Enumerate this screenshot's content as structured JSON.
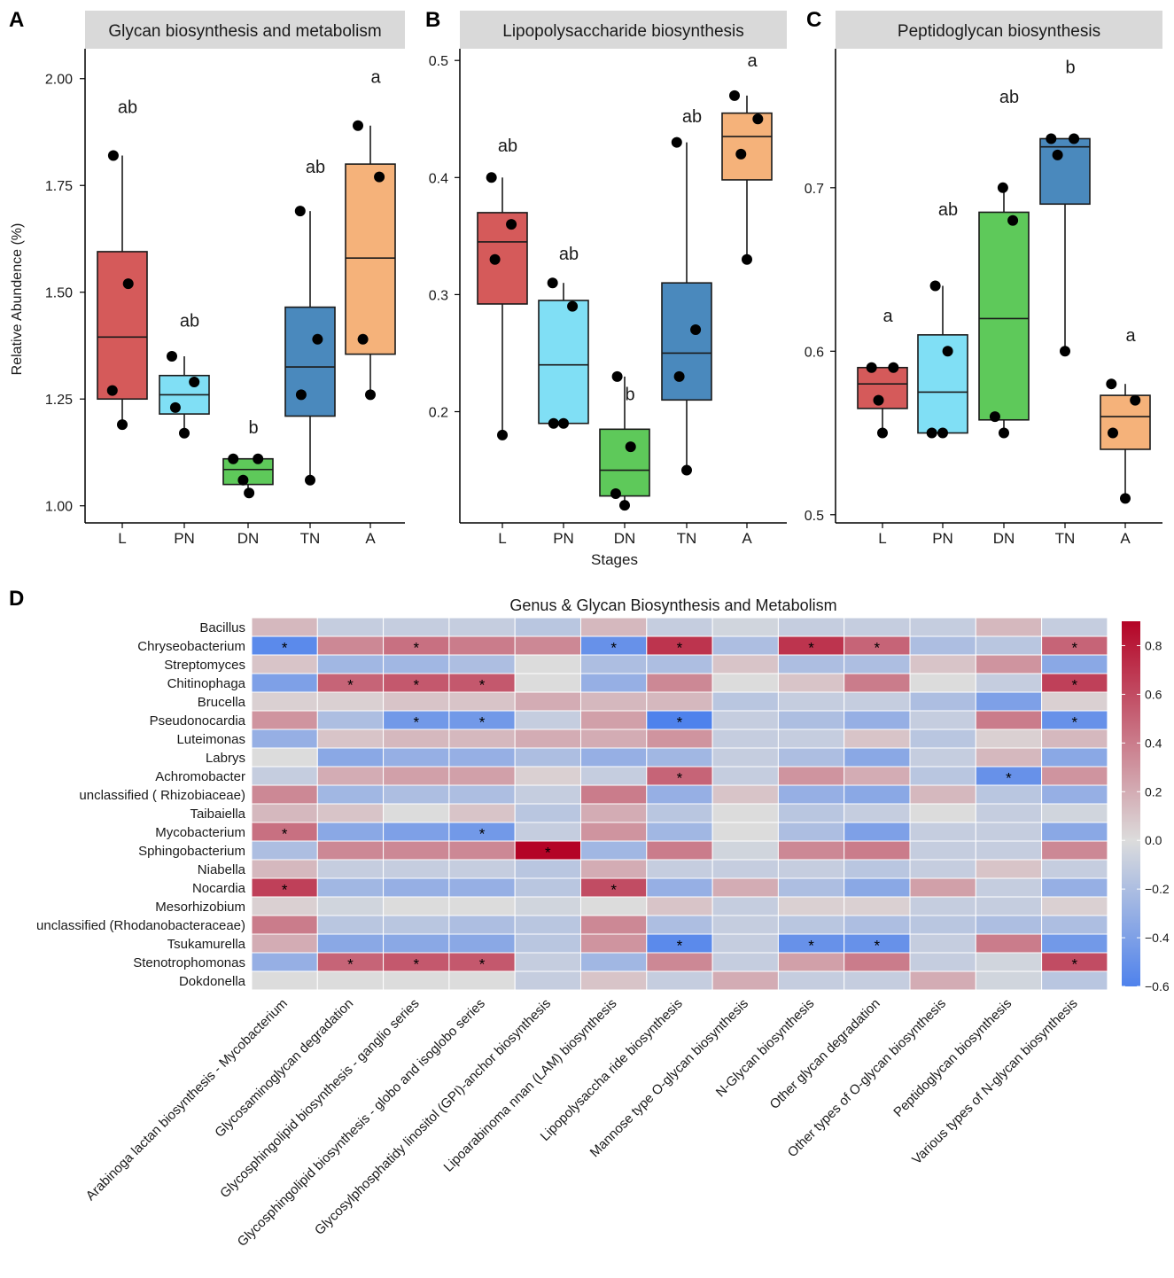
{
  "figure": {
    "panel_letters": [
      "A",
      "B",
      "C",
      "D"
    ],
    "stages_label": "Stages",
    "stage_colors": [
      "#d55a5a",
      "#80dff5",
      "#5ec95a",
      "#4a89bd",
      "#f5b27a"
    ]
  },
  "chart_data": [
    {
      "type": "box",
      "panel": "A",
      "title": "Glycan biosynthesis and metabolism",
      "ylabel": "Relative Abundence (%)",
      "xlabel": "",
      "categories": [
        "L",
        "PN",
        "DN",
        "TN",
        "A"
      ],
      "ylim": [
        0.96,
        2.07
      ],
      "yticks": [
        1.0,
        1.25,
        1.5,
        1.75,
        2.0
      ],
      "ytick_labels": [
        "1.00",
        "1.25",
        "1.50",
        "1.75",
        "2.00"
      ],
      "boxes": [
        {
          "group": "L",
          "whisker_low": 1.19,
          "q1": 1.25,
          "median": 1.395,
          "q3": 1.595,
          "whisker_high": 1.82
        },
        {
          "group": "PN",
          "whisker_low": 1.17,
          "q1": 1.215,
          "median": 1.26,
          "q3": 1.305,
          "whisker_high": 1.35
        },
        {
          "group": "DN",
          "whisker_low": 1.03,
          "q1": 1.05,
          "median": 1.085,
          "q3": 1.11,
          "whisker_high": 1.11
        },
        {
          "group": "TN",
          "whisker_low": 1.06,
          "q1": 1.21,
          "median": 1.325,
          "q3": 1.465,
          "whisker_high": 1.69
        },
        {
          "group": "A",
          "whisker_low": 1.26,
          "q1": 1.355,
          "median": 1.58,
          "q3": 1.8,
          "whisker_high": 1.89
        }
      ],
      "points": [
        [
          [
            -0.18,
            1.82
          ],
          [
            0.12,
            1.52
          ],
          [
            -0.2,
            1.27
          ],
          [
            0.0,
            1.19
          ]
        ],
        [
          [
            -0.25,
            1.35
          ],
          [
            0.2,
            1.29
          ],
          [
            -0.18,
            1.23
          ],
          [
            0.0,
            1.17
          ]
        ],
        [
          [
            -0.3,
            1.11
          ],
          [
            0.2,
            1.11
          ],
          [
            -0.1,
            1.06
          ],
          [
            0.02,
            1.03
          ]
        ],
        [
          [
            -0.2,
            1.69
          ],
          [
            0.15,
            1.39
          ],
          [
            -0.18,
            1.26
          ],
          [
            0.0,
            1.06
          ]
        ],
        [
          [
            -0.25,
            1.89
          ],
          [
            0.18,
            1.77
          ],
          [
            -0.15,
            1.39
          ],
          [
            0.0,
            1.26
          ]
        ]
      ],
      "letters": [
        "ab",
        "ab",
        "b",
        "ab",
        "a"
      ],
      "letter_values": [
        1.92,
        1.42,
        1.17,
        1.78,
        1.99
      ]
    },
    {
      "type": "box",
      "panel": "B",
      "title": "Lipopolysaccharide biosynthesis",
      "ylabel": "",
      "xlabel": "Stages",
      "categories": [
        "L",
        "PN",
        "DN",
        "TN",
        "A"
      ],
      "ylim": [
        0.105,
        0.51
      ],
      "yticks": [
        0.2,
        0.3,
        0.4,
        0.5
      ],
      "ytick_labels": [
        "0.2",
        "0.3",
        "0.4",
        "0.5"
      ],
      "boxes": [
        {
          "group": "L",
          "whisker_low": 0.18,
          "q1": 0.292,
          "median": 0.345,
          "q3": 0.37,
          "whisker_high": 0.4
        },
        {
          "group": "PN",
          "whisker_low": 0.19,
          "q1": 0.19,
          "median": 0.24,
          "q3": 0.295,
          "whisker_high": 0.31
        },
        {
          "group": "DN",
          "whisker_low": 0.12,
          "q1": 0.128,
          "median": 0.15,
          "q3": 0.185,
          "whisker_high": 0.23
        },
        {
          "group": "TN",
          "whisker_low": 0.15,
          "q1": 0.21,
          "median": 0.25,
          "q3": 0.31,
          "whisker_high": 0.43
        },
        {
          "group": "A",
          "whisker_low": 0.33,
          "q1": 0.398,
          "median": 0.435,
          "q3": 0.455,
          "whisker_high": 0.47
        }
      ],
      "points": [
        [
          [
            -0.22,
            0.4
          ],
          [
            0.18,
            0.36
          ],
          [
            -0.15,
            0.33
          ],
          [
            0.0,
            0.18
          ]
        ],
        [
          [
            -0.22,
            0.31
          ],
          [
            0.18,
            0.29
          ],
          [
            -0.2,
            0.19
          ],
          [
            0.0,
            0.19
          ]
        ],
        [
          [
            -0.15,
            0.23
          ],
          [
            0.12,
            0.17
          ],
          [
            -0.18,
            0.13
          ],
          [
            0.0,
            0.12
          ]
        ],
        [
          [
            -0.2,
            0.43
          ],
          [
            0.18,
            0.27
          ],
          [
            -0.15,
            0.23
          ],
          [
            0.0,
            0.15
          ]
        ],
        [
          [
            -0.25,
            0.47
          ],
          [
            0.22,
            0.45
          ],
          [
            -0.12,
            0.42
          ],
          [
            0.0,
            0.33
          ]
        ]
      ],
      "letters": [
        "ab",
        "ab",
        "b",
        "ab",
        "a"
      ],
      "letter_values": [
        0.422,
        0.33,
        0.21,
        0.447,
        0.495
      ]
    },
    {
      "type": "box",
      "panel": "C",
      "title": "Peptidoglycan biosynthesis",
      "ylabel": "",
      "xlabel": "",
      "categories": [
        "L",
        "PN",
        "DN",
        "TN",
        "A"
      ],
      "ylim": [
        0.495,
        0.785
      ],
      "yticks": [
        0.5,
        0.6,
        0.7
      ],
      "ytick_labels": [
        "0.5",
        "0.6",
        "0.7"
      ],
      "boxes": [
        {
          "group": "L",
          "whisker_low": 0.55,
          "q1": 0.565,
          "median": 0.58,
          "q3": 0.59,
          "whisker_high": 0.59
        },
        {
          "group": "PN",
          "whisker_low": 0.55,
          "q1": 0.55,
          "median": 0.575,
          "q3": 0.61,
          "whisker_high": 0.64
        },
        {
          "group": "DN",
          "whisker_low": 0.55,
          "q1": 0.558,
          "median": 0.62,
          "q3": 0.685,
          "whisker_high": 0.7
        },
        {
          "group": "TN",
          "whisker_low": 0.6,
          "q1": 0.69,
          "median": 0.725,
          "q3": 0.73,
          "whisker_high": 0.73
        },
        {
          "group": "A",
          "whisker_low": 0.51,
          "q1": 0.54,
          "median": 0.56,
          "q3": 0.573,
          "whisker_high": 0.58
        }
      ],
      "points": [
        [
          [
            -0.22,
            0.59
          ],
          [
            0.22,
            0.59
          ],
          [
            -0.08,
            0.57
          ],
          [
            0.0,
            0.55
          ]
        ],
        [
          [
            -0.15,
            0.64
          ],
          [
            0.1,
            0.6
          ],
          [
            -0.22,
            0.55
          ],
          [
            0.0,
            0.55
          ]
        ],
        [
          [
            -0.02,
            0.7
          ],
          [
            0.18,
            0.68
          ],
          [
            -0.18,
            0.56
          ],
          [
            0.0,
            0.55
          ]
        ],
        [
          [
            -0.28,
            0.73
          ],
          [
            0.18,
            0.73
          ],
          [
            -0.15,
            0.72
          ],
          [
            0.0,
            0.6
          ]
        ],
        [
          [
            -0.28,
            0.58
          ],
          [
            0.2,
            0.57
          ],
          [
            -0.25,
            0.55
          ],
          [
            0.0,
            0.51
          ]
        ]
      ],
      "letters": [
        "a",
        "ab",
        "ab",
        "b",
        "a"
      ],
      "letter_values": [
        0.618,
        0.683,
        0.752,
        0.77,
        0.606
      ]
    },
    {
      "type": "heatmap",
      "panel": "D",
      "title": "Genus & Glycan Biosynthesis and Metabolism",
      "rows": [
        "Bacillus",
        "Chryseobacterium",
        "Streptomyces",
        "Chitinophaga",
        "Brucella",
        "Pseudonocardia",
        "Luteimonas",
        "Labrys",
        "Achromobacter",
        "unclassified ( Rhizobiaceae)",
        "Taibaiella",
        "Mycobacterium",
        "Sphingobacterium",
        "Niabella",
        "Nocardia",
        "Mesorhizobium",
        "unclassified (Rhodanobacteraceae)",
        "Tsukamurella",
        "Stenotrophomonas",
        "Dokdonella"
      ],
      "columns": [
        "Arabinoga lactan biosynthesis - Mycobacterium",
        "Glycosaminoglycan degradation",
        "Glycosphingolipid biosynthesis - ganglio series",
        "Glycosphingolipid biosynthesis - globo and isoglobo series",
        "Glycosylphosphatidy linositol (GPI)-anchor biosynthesis",
        "Lipoarabinoma nnan (LAM) biosynthesis",
        "Lipopolysaccha ride biosynthesis",
        "Mannose type O-glycan biosynthesis",
        "N-Glycan biosynthesis",
        "Other glycan degradation",
        "Other types of O-glycan biosynthesis",
        "Peptidoglycan biosynthesis",
        "Various types of N-glycan biosynthesis"
      ],
      "values": [
        [
          0.15,
          -0.1,
          -0.1,
          -0.1,
          -0.15,
          0.15,
          -0.1,
          -0.05,
          -0.1,
          -0.1,
          -0.1,
          0.15,
          -0.1
        ],
        [
          -0.55,
          0.35,
          0.45,
          0.4,
          0.35,
          -0.5,
          0.7,
          -0.2,
          0.7,
          0.5,
          -0.2,
          -0.15,
          0.5
        ],
        [
          0.1,
          -0.25,
          -0.25,
          -0.2,
          0.0,
          -0.2,
          -0.2,
          0.1,
          -0.2,
          -0.2,
          0.1,
          0.3,
          -0.35
        ],
        [
          -0.4,
          0.5,
          0.55,
          0.55,
          0.0,
          -0.3,
          0.35,
          0.0,
          0.1,
          0.4,
          0.0,
          -0.1,
          0.65
        ],
        [
          0.05,
          0.05,
          0.1,
          0.1,
          0.2,
          0.15,
          0.15,
          -0.15,
          -0.1,
          -0.1,
          -0.2,
          -0.4,
          0.05
        ],
        [
          0.3,
          -0.2,
          -0.45,
          -0.45,
          -0.1,
          0.25,
          -0.6,
          -0.1,
          -0.2,
          -0.3,
          -0.1,
          0.4,
          -0.5
        ],
        [
          -0.3,
          0.1,
          0.15,
          0.15,
          0.2,
          0.2,
          0.3,
          -0.1,
          -0.1,
          0.1,
          -0.15,
          0.05,
          0.15
        ],
        [
          0.0,
          -0.35,
          -0.3,
          -0.3,
          -0.2,
          -0.3,
          -0.25,
          -0.1,
          -0.2,
          -0.35,
          -0.1,
          0.15,
          -0.35
        ],
        [
          -0.1,
          0.2,
          0.25,
          0.25,
          0.05,
          -0.1,
          0.5,
          -0.1,
          0.3,
          0.2,
          -0.15,
          -0.5,
          0.3
        ],
        [
          0.35,
          -0.25,
          -0.2,
          -0.2,
          -0.1,
          0.4,
          -0.3,
          0.1,
          -0.3,
          -0.35,
          0.15,
          -0.15,
          -0.3
        ],
        [
          0.15,
          0.1,
          0.0,
          0.1,
          -0.15,
          0.2,
          -0.15,
          0.0,
          -0.15,
          -0.1,
          0.0,
          -0.1,
          -0.05
        ],
        [
          0.45,
          -0.35,
          -0.4,
          -0.45,
          -0.1,
          0.3,
          -0.25,
          0.0,
          -0.2,
          -0.4,
          -0.1,
          -0.1,
          -0.35
        ],
        [
          -0.2,
          0.35,
          0.35,
          0.35,
          0.9,
          -0.25,
          0.4,
          -0.05,
          0.35,
          0.4,
          -0.1,
          -0.1,
          0.35
        ],
        [
          0.15,
          -0.1,
          -0.1,
          -0.1,
          -0.15,
          0.2,
          -0.1,
          -0.1,
          -0.1,
          -0.15,
          -0.1,
          0.1,
          -0.1
        ],
        [
          0.65,
          -0.25,
          -0.3,
          -0.3,
          -0.15,
          0.6,
          -0.3,
          0.2,
          -0.2,
          -0.35,
          0.25,
          -0.1,
          -0.3
        ],
        [
          0.05,
          -0.05,
          0.0,
          0.0,
          -0.05,
          0.0,
          0.1,
          -0.1,
          0.05,
          0.05,
          -0.1,
          -0.1,
          0.05
        ],
        [
          0.4,
          -0.15,
          -0.15,
          -0.2,
          -0.15,
          0.35,
          -0.2,
          -0.1,
          -0.15,
          -0.2,
          -0.15,
          -0.2,
          -0.2
        ],
        [
          0.2,
          -0.35,
          -0.35,
          -0.35,
          -0.15,
          0.3,
          -0.55,
          -0.1,
          -0.5,
          -0.5,
          -0.1,
          0.4,
          -0.45
        ],
        [
          -0.3,
          0.5,
          0.55,
          0.55,
          -0.1,
          -0.25,
          0.35,
          -0.1,
          0.25,
          0.4,
          -0.1,
          -0.05,
          0.6
        ],
        [
          0.0,
          0.0,
          0.0,
          0.0,
          -0.1,
          0.1,
          -0.1,
          0.2,
          -0.1,
          -0.1,
          0.2,
          -0.05,
          -0.15
        ]
      ],
      "significant": [
        [
          1,
          0
        ],
        [
          1,
          2
        ],
        [
          1,
          5
        ],
        [
          1,
          6
        ],
        [
          1,
          8
        ],
        [
          1,
          9
        ],
        [
          1,
          12
        ],
        [
          3,
          1
        ],
        [
          3,
          2
        ],
        [
          3,
          3
        ],
        [
          3,
          12
        ],
        [
          5,
          2
        ],
        [
          5,
          3
        ],
        [
          5,
          6
        ],
        [
          5,
          12
        ],
        [
          8,
          6
        ],
        [
          8,
          11
        ],
        [
          11,
          0
        ],
        [
          11,
          3
        ],
        [
          12,
          4
        ],
        [
          14,
          0
        ],
        [
          14,
          5
        ],
        [
          17,
          6
        ],
        [
          17,
          8
        ],
        [
          17,
          9
        ],
        [
          18,
          1
        ],
        [
          18,
          2
        ],
        [
          18,
          3
        ],
        [
          18,
          12
        ]
      ],
      "significance_mark": "*",
      "color_scale": {
        "min": -0.6,
        "max": 0.9,
        "low": "#4f82ec",
        "mid": "#dcdcdc",
        "high": "#b40426"
      },
      "colorbar_ticks": [
        0.8,
        0.6,
        0.4,
        0.2,
        0.0,
        -0.2,
        -0.4,
        -0.6
      ],
      "colorbar_labels": [
        "0.8",
        "0.6",
        "0.4",
        "0.2",
        "0.0",
        "−0.2",
        "−0.4",
        "−0.6"
      ]
    }
  ]
}
